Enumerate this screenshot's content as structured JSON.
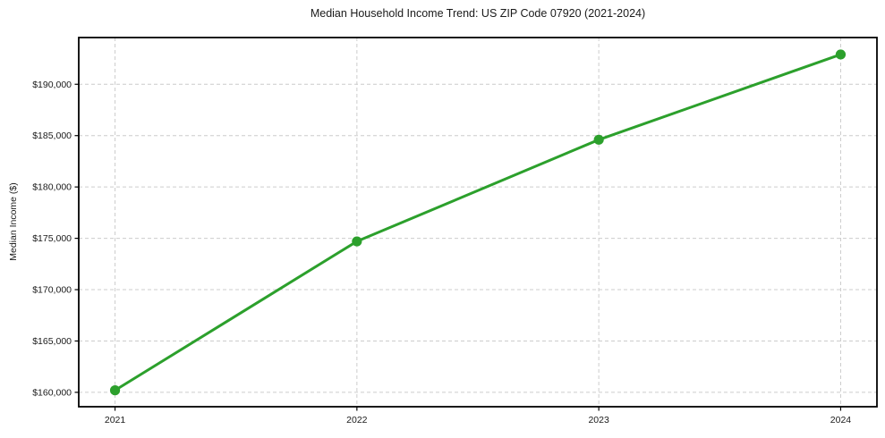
{
  "figure": {
    "background": "#ffffff"
  },
  "chart_data": {
    "type": "line",
    "title": "Median Household Income Trend: US ZIP Code 07920 (2021-2024)",
    "xlabel": "",
    "ylabel": "Median Income ($)",
    "x": [
      2021,
      2022,
      2023,
      2024
    ],
    "values": [
      160200,
      174700,
      184600,
      192900
    ],
    "series_name": "Median Household Income",
    "xlim": [
      2020.85,
      2024.15
    ],
    "ylim": [
      158600,
      194550
    ],
    "xticks": {
      "values": [
        2021,
        2022,
        2023,
        2024
      ],
      "labels": [
        "2021",
        "2022",
        "2023",
        "2024"
      ]
    },
    "yticks": {
      "values": [
        160000,
        165000,
        170000,
        175000,
        180000,
        185000,
        190000
      ],
      "labels": [
        "$160,000",
        "$165,000",
        "$170,000",
        "$175,000",
        "$180,000",
        "$185,000",
        "$190,000"
      ]
    },
    "grid": true,
    "legend": false,
    "style": {
      "line_color": "#2ca02c",
      "line_width": 3,
      "marker": "circle",
      "marker_radius": 5.6,
      "marker_color": "#2ca02c",
      "grid_color": "#cccccc",
      "grid_style": "dashed",
      "spine_color": "#000000",
      "text_color": "#1a1a1a"
    }
  }
}
